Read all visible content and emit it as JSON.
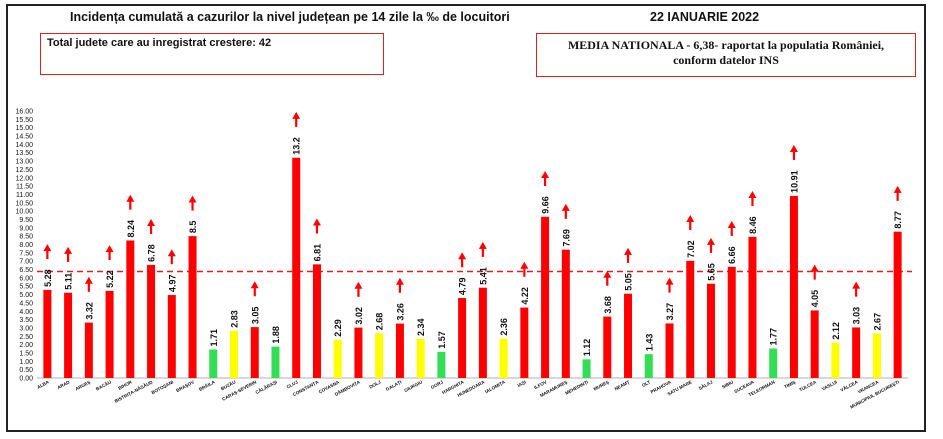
{
  "title": "Incidența cumulată a cazurilor la nivel județean pe 14 zile la ‰ de locuitori",
  "date": "22 IANUARIE 2022",
  "left_box": "Total judete care au inregistrat crestere: 42",
  "right_box_line1": "MEDIA NATIONALA - 6,38-  raportat la populatia României,",
  "right_box_line2": "conform datelor INS",
  "colors": {
    "red": "#ff0000",
    "yellow": "#ffff00",
    "green": "#33dd55",
    "arrow": "#ff0000",
    "average_line": "#e02020"
  },
  "chart_data": {
    "type": "bar",
    "title": "",
    "xlabel": "",
    "ylabel": "",
    "ylim": [
      0,
      16
    ],
    "y_ticks": [
      "0.00",
      "0.50",
      "1.00",
      "1.50",
      "2.00",
      "2.50",
      "3.00",
      "3.50",
      "4.00",
      "4.50",
      "5.00",
      "5.50",
      "6.00",
      "6.50",
      "7.00",
      "7.50",
      "8.00",
      "8.50",
      "9.00",
      "9.50",
      "10.00",
      "10.50",
      "11.00",
      "11.50",
      "12.00",
      "12.50",
      "13.00",
      "13.50",
      "14.00",
      "14.50",
      "15.00",
      "15.50",
      "16.00"
    ],
    "average": 6.38,
    "grid": false,
    "categories": [
      "ALBA",
      "ARAD",
      "ARGEȘ",
      "BACĂU",
      "BIHOR",
      "BISTRIȚA-NĂSĂUD",
      "BOTOȘANI",
      "BRAȘOV",
      "BRĂILA",
      "BUZĂU",
      "CARAȘ-SEVERIN",
      "CĂLĂRAȘI",
      "CLUJ",
      "CONSTANȚA",
      "COVASNA",
      "DÂMBOVIȚA",
      "DOLJ",
      "GALAȚI",
      "GIURGIU",
      "GORJ",
      "HARGHITA",
      "HUNEDOARA",
      "IALOMIȚA",
      "IAȘI",
      "ILFOV",
      "MARAMUREȘ",
      "MEHEDINȚI",
      "MUREȘ",
      "NEAMȚ",
      "OLT",
      "PRAHOVA",
      "SATU MARE",
      "SĂLAJ",
      "SIBIU",
      "SUCEAVA",
      "TELEORMAN",
      "TIMIȘ",
      "TULCEA",
      "VASLUI",
      "VÂLCEA",
      "VRANCEA",
      "MUNICIPIUL BUCUREȘTI"
    ],
    "values": [
      5.28,
      5.11,
      3.32,
      5.22,
      8.24,
      6.78,
      4.97,
      8.5,
      1.71,
      2.83,
      3.05,
      1.88,
      13.2,
      6.81,
      2.29,
      3.02,
      2.68,
      3.26,
      2.34,
      1.57,
      4.79,
      5.41,
      2.36,
      4.22,
      9.66,
      7.69,
      1.12,
      3.68,
      5.05,
      1.43,
      3.27,
      7.02,
      5.65,
      6.66,
      8.46,
      1.77,
      10.91,
      4.05,
      2.12,
      3.03,
      2.67,
      8.77
    ],
    "value_labels": [
      "5.28",
      "5.11",
      "3.32",
      "5.22",
      "8.24",
      "6.78",
      "4.97",
      "8.5",
      "1.71",
      "2.83",
      "3.05",
      "1.88",
      "13.2",
      "6.81",
      "2.29",
      "3.02",
      "2.68",
      "3.26",
      "2.34",
      "1.57",
      "4.79",
      "5.41",
      "2.36",
      "4.22",
      "9.66",
      "7.69",
      "1.12",
      "3.68",
      "5.05",
      "1.43",
      "3.27",
      "7.02",
      "5.65",
      "6.66",
      "8.46",
      "1.77",
      "10.91",
      "4.05",
      "2.12",
      "3.03",
      "2.67",
      "8.77"
    ],
    "bar_colors": [
      "red",
      "red",
      "red",
      "red",
      "red",
      "red",
      "red",
      "red",
      "green",
      "yellow",
      "red",
      "green",
      "red",
      "red",
      "yellow",
      "red",
      "yellow",
      "red",
      "yellow",
      "green",
      "red",
      "red",
      "yellow",
      "red",
      "red",
      "red",
      "green",
      "red",
      "red",
      "green",
      "red",
      "red",
      "red",
      "red",
      "red",
      "green",
      "red",
      "red",
      "yellow",
      "red",
      "yellow",
      "red"
    ]
  }
}
